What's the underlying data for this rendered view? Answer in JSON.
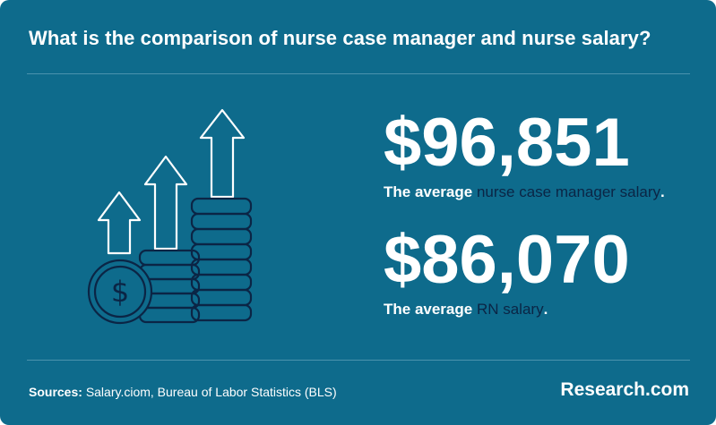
{
  "title": "What is the comparison of nurse case manager and nurse salary?",
  "stats": [
    {
      "value": "$96,851",
      "caption_prefix": "The average ",
      "caption_highlight": "nurse case manager salary",
      "caption_suffix": "."
    },
    {
      "value": "$86,070",
      "caption_prefix": "The average ",
      "caption_highlight": "RN salary",
      "caption_suffix": "."
    }
  ],
  "footer": {
    "sources_label": "Sources:",
    "sources_text": "Salary.ciom, Bureau of Labor Statistics (BLS)",
    "brand": "Research.com"
  },
  "illustration": {
    "icon": "rising-coins-arrows-icon",
    "coin_symbol": "$"
  },
  "colors": {
    "background": "#0e6b8c",
    "highlight_text": "#0b2545",
    "divider": "#4b93ad",
    "illustration_stroke": "#0b2545",
    "text": "#ffffff"
  }
}
